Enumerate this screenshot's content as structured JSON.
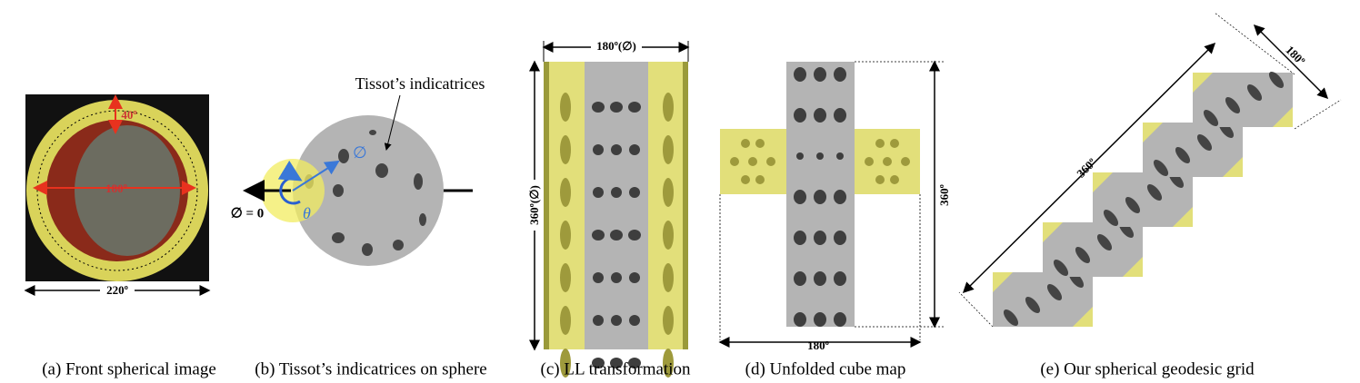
{
  "panels": [
    {
      "caption": "(a) Front spherical image",
      "labels": [
        "220º",
        "40º",
        "180º"
      ]
    },
    {
      "caption": "(b) Tissot’s indicatrices on sphere",
      "labels": [
        "Tissot’s indicatrices",
        "∅ = 0",
        "∅",
        "θ"
      ]
    },
    {
      "caption": "(c) LL transformation",
      "labels": [
        "180º(∅)",
        "360º(∅)"
      ]
    },
    {
      "caption": "(d) Unfolded cube map",
      "labels": [
        "180º",
        "360º"
      ]
    },
    {
      "caption": "(e) Our spherical geodesic grid",
      "labels": [
        "180º",
        "360º"
      ]
    }
  ]
}
